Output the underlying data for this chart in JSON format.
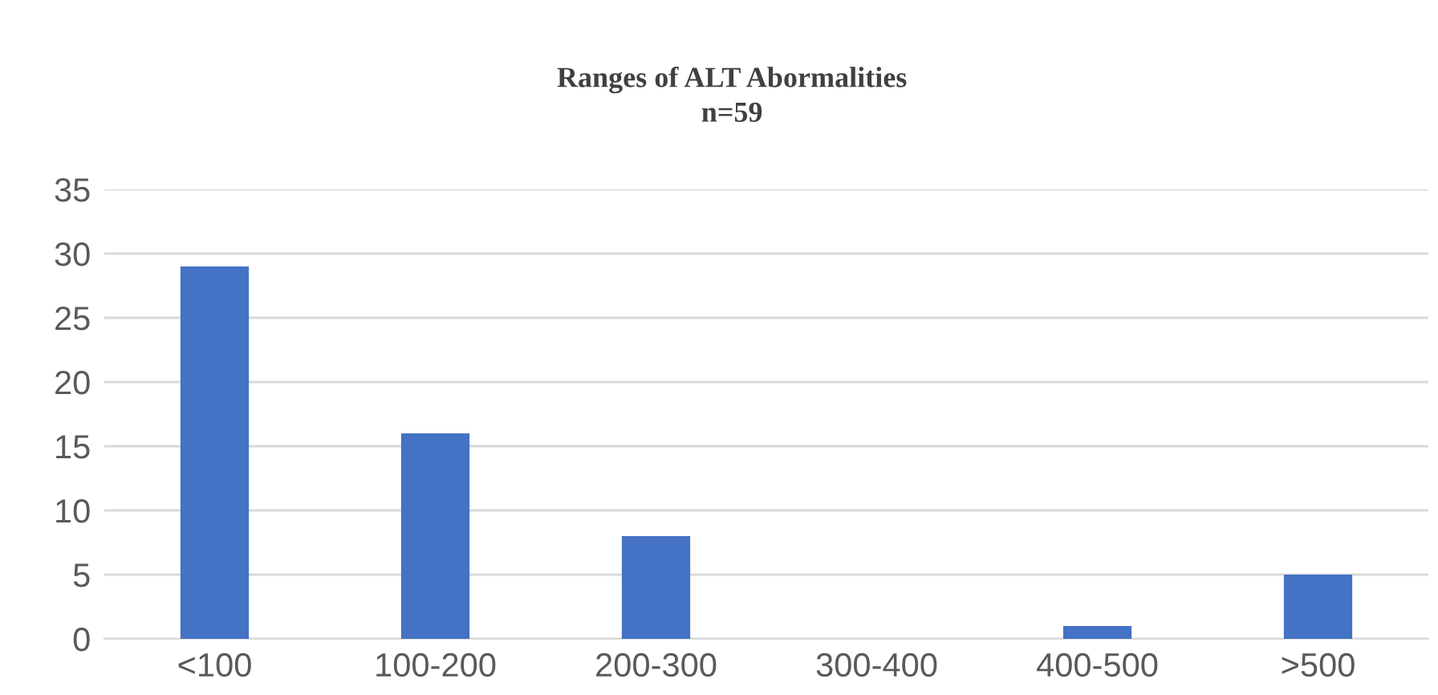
{
  "chart_data": {
    "type": "bar",
    "title": "Ranges of ALT Abormalities",
    "subtitle": "n=59",
    "categories": [
      "<100",
      "100-200",
      "200-300",
      "300-400",
      "400-500",
      ">500"
    ],
    "values": [
      29,
      16,
      8,
      0,
      1,
      5
    ],
    "color": "#4472c4",
    "ylim": [
      0,
      35
    ],
    "yticks": [
      0,
      5,
      10,
      15,
      20,
      25,
      30,
      35
    ],
    "grid": "y",
    "legend": false
  }
}
